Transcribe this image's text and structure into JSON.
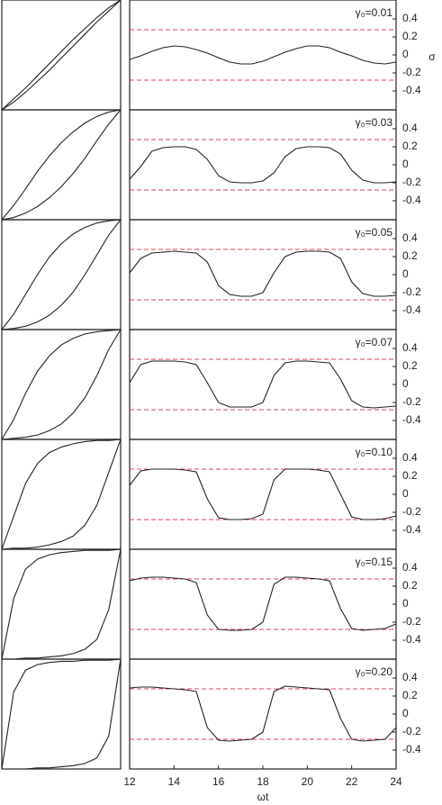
{
  "chart_data": [
    {
      "type": "line",
      "x": [
        0,
        0.1,
        0.2,
        0.3,
        0.4,
        0.5,
        0.6,
        0.7,
        0.8,
        0.9,
        1
      ],
      "xlim": [
        0,
        1
      ],
      "ylim": [
        0,
        1
      ],
      "series": [
        {
          "color": "#222222",
          "values": [
            0,
            0.07,
            0.16,
            0.26,
            0.36,
            0.47,
            0.58,
            0.69,
            0.8,
            0.9,
            1
          ]
        },
        {
          "color": "#222222",
          "values": [
            0,
            0.1,
            0.2,
            0.31,
            0.42,
            0.53,
            0.64,
            0.74,
            0.84,
            0.93,
            1
          ]
        }
      ]
    },
    {
      "type": "line",
      "annotation": "γ₀=0.01",
      "ylabel": "σ",
      "x": [
        12,
        12.5,
        13,
        13.5,
        14,
        14.5,
        15,
        15.5,
        16,
        16.5,
        17,
        17.5,
        18,
        18.5,
        19,
        19.5,
        20,
        20.5,
        21,
        21.5,
        22,
        22.5,
        23,
        23.5,
        24
      ],
      "xlim": [
        12,
        24
      ],
      "ylim": [
        -0.61,
        0.61
      ],
      "yticks": [
        0.4,
        0.2,
        0,
        -0.2,
        -0.4
      ],
      "hlines": [
        0.28,
        -0.28
      ],
      "hline_color": "#e0405a",
      "series": [
        {
          "color": "#222222",
          "values": [
            -0.05,
            -0.01,
            0.04,
            0.08,
            0.1,
            0.09,
            0.06,
            0.02,
            -0.03,
            -0.08,
            -0.1,
            -0.1,
            -0.07,
            -0.02,
            0.03,
            0.07,
            0.1,
            0.1,
            0.08,
            0.03,
            -0.01,
            -0.06,
            -0.09,
            -0.1,
            -0.08
          ]
        }
      ]
    },
    {
      "type": "line",
      "x": [
        0,
        0.1,
        0.2,
        0.3,
        0.4,
        0.5,
        0.6,
        0.7,
        0.8,
        0.9,
        1
      ],
      "xlim": [
        0,
        1
      ],
      "ylim": [
        0,
        1
      ],
      "series": [
        {
          "color": "#222222",
          "values": [
            0,
            0.02,
            0.06,
            0.12,
            0.2,
            0.3,
            0.42,
            0.56,
            0.72,
            0.87,
            1
          ]
        },
        {
          "color": "#222222",
          "values": [
            0,
            0.13,
            0.28,
            0.44,
            0.58,
            0.7,
            0.8,
            0.88,
            0.94,
            0.98,
            1
          ]
        }
      ]
    },
    {
      "type": "line",
      "annotation": "γ₀=0.03",
      "x": [
        12,
        12.5,
        13,
        13.5,
        14,
        14.5,
        15,
        15.5,
        16,
        16.5,
        17,
        17.5,
        18,
        18.5,
        19,
        19.5,
        20,
        20.5,
        21,
        21.5,
        22,
        22.5,
        23,
        23.5,
        24
      ],
      "xlim": [
        12,
        24
      ],
      "ylim": [
        -0.61,
        0.61
      ],
      "yticks": [
        0.4,
        0.2,
        0,
        -0.2,
        -0.4
      ],
      "hlines": [
        0.28,
        -0.28
      ],
      "hline_color": "#e0405a",
      "series": [
        {
          "color": "#222222",
          "values": [
            -0.16,
            -0.02,
            0.15,
            0.19,
            0.2,
            0.2,
            0.17,
            0.06,
            -0.12,
            -0.19,
            -0.2,
            -0.2,
            -0.18,
            -0.09,
            0.09,
            0.18,
            0.2,
            0.2,
            0.19,
            0.12,
            -0.06,
            -0.17,
            -0.2,
            -0.2,
            -0.19
          ]
        }
      ]
    },
    {
      "type": "line",
      "x": [
        0,
        0.1,
        0.2,
        0.3,
        0.4,
        0.5,
        0.6,
        0.7,
        0.8,
        0.9,
        1
      ],
      "xlim": [
        0,
        1
      ],
      "ylim": [
        0,
        1
      ],
      "series": [
        {
          "color": "#222222",
          "values": [
            0,
            0.01,
            0.03,
            0.07,
            0.13,
            0.22,
            0.34,
            0.5,
            0.68,
            0.86,
            1
          ]
        },
        {
          "color": "#222222",
          "values": [
            0,
            0.14,
            0.32,
            0.5,
            0.66,
            0.78,
            0.87,
            0.93,
            0.97,
            0.99,
            1
          ]
        }
      ]
    },
    {
      "type": "line",
      "annotation": "γ₀=0.05",
      "x": [
        12,
        12.5,
        13,
        13.5,
        14,
        14.5,
        15,
        15.5,
        16,
        16.5,
        17,
        17.5,
        18,
        18.5,
        19,
        19.5,
        20,
        20.5,
        21,
        21.5,
        22,
        22.5,
        23,
        23.5,
        24
      ],
      "xlim": [
        12,
        24
      ],
      "ylim": [
        -0.61,
        0.61
      ],
      "yticks": [
        0.4,
        0.2,
        0,
        -0.2,
        -0.4
      ],
      "hlines": [
        0.28,
        -0.28
      ],
      "hline_color": "#e0405a",
      "series": [
        {
          "color": "#222222",
          "values": [
            0.02,
            0.18,
            0.24,
            0.25,
            0.26,
            0.25,
            0.24,
            0.14,
            -0.12,
            -0.22,
            -0.24,
            -0.24,
            -0.2,
            0.02,
            0.2,
            0.25,
            0.26,
            0.26,
            0.25,
            0.18,
            -0.08,
            -0.21,
            -0.24,
            -0.24,
            -0.23
          ]
        }
      ]
    },
    {
      "type": "line",
      "x": [
        0,
        0.1,
        0.2,
        0.3,
        0.4,
        0.5,
        0.6,
        0.7,
        0.8,
        0.9,
        1
      ],
      "xlim": [
        0,
        1
      ],
      "ylim": [
        0,
        1
      ],
      "series": [
        {
          "color": "#222222",
          "values": [
            0,
            0.01,
            0.02,
            0.04,
            0.08,
            0.14,
            0.24,
            0.38,
            0.58,
            0.82,
            1
          ]
        },
        {
          "color": "#222222",
          "values": [
            0,
            0.18,
            0.42,
            0.62,
            0.76,
            0.86,
            0.92,
            0.96,
            0.98,
            0.99,
            1
          ]
        }
      ]
    },
    {
      "type": "line",
      "annotation": "γ₀=0.07",
      "x": [
        12,
        12.5,
        13,
        13.5,
        14,
        14.5,
        15,
        15.5,
        16,
        16.5,
        17,
        17.5,
        18,
        18.5,
        19,
        19.5,
        20,
        20.5,
        21,
        21.5,
        22,
        22.5,
        23,
        23.5,
        24
      ],
      "xlim": [
        12,
        24
      ],
      "ylim": [
        -0.61,
        0.61
      ],
      "yticks": [
        0.4,
        0.2,
        0,
        -0.2,
        -0.4
      ],
      "hlines": [
        0.28,
        -0.28
      ],
      "hline_color": "#e0405a",
      "series": [
        {
          "color": "#222222",
          "values": [
            0.02,
            0.22,
            0.26,
            0.26,
            0.26,
            0.25,
            0.22,
            0.02,
            -0.2,
            -0.25,
            -0.25,
            -0.25,
            -0.2,
            0.1,
            0.24,
            0.26,
            0.26,
            0.25,
            0.24,
            0.06,
            -0.18,
            -0.25,
            -0.26,
            -0.25,
            -0.24
          ]
        }
      ]
    },
    {
      "type": "line",
      "x": [
        0,
        0.1,
        0.2,
        0.3,
        0.4,
        0.5,
        0.6,
        0.7,
        0.8,
        0.9,
        1
      ],
      "xlim": [
        0,
        1
      ],
      "ylim": [
        0,
        1
      ],
      "series": [
        {
          "color": "#222222",
          "values": [
            0,
            0.01,
            0.01,
            0.02,
            0.04,
            0.07,
            0.12,
            0.22,
            0.4,
            0.7,
            1
          ]
        },
        {
          "color": "#222222",
          "values": [
            0,
            0.3,
            0.6,
            0.78,
            0.88,
            0.93,
            0.96,
            0.98,
            0.99,
            0.99,
            1
          ]
        }
      ]
    },
    {
      "type": "line",
      "annotation": "γ₀=0.10",
      "x": [
        12,
        12.5,
        13,
        13.5,
        14,
        14.5,
        15,
        15.5,
        16,
        16.5,
        17,
        17.5,
        18,
        18.5,
        19,
        19.5,
        20,
        20.5,
        21,
        21.5,
        22,
        22.5,
        23,
        23.5,
        24
      ],
      "xlim": [
        12,
        24
      ],
      "ylim": [
        -0.61,
        0.61
      ],
      "yticks": [
        0.4,
        0.2,
        0,
        -0.2,
        -0.4
      ],
      "hlines": [
        0.28,
        -0.28
      ],
      "hline_color": "#e0405a",
      "series": [
        {
          "color": "#222222",
          "values": [
            0.1,
            0.26,
            0.28,
            0.28,
            0.28,
            0.27,
            0.25,
            -0.05,
            -0.26,
            -0.28,
            -0.28,
            -0.27,
            -0.22,
            0.16,
            0.28,
            0.28,
            0.28,
            0.27,
            0.25,
            0,
            -0.25,
            -0.28,
            -0.28,
            -0.27,
            -0.24
          ]
        }
      ]
    },
    {
      "type": "line",
      "x": [
        0,
        0.1,
        0.2,
        0.3,
        0.4,
        0.5,
        0.6,
        0.7,
        0.8,
        0.9,
        1
      ],
      "xlim": [
        0,
        1
      ],
      "ylim": [
        0,
        1
      ],
      "series": [
        {
          "color": "#222222",
          "values": [
            0,
            0,
            0.01,
            0.01,
            0.02,
            0.03,
            0.05,
            0.09,
            0.18,
            0.45,
            1
          ]
        },
        {
          "color": "#222222",
          "values": [
            0,
            0.55,
            0.82,
            0.91,
            0.95,
            0.97,
            0.98,
            0.99,
            0.99,
            0.99,
            1
          ]
        }
      ]
    },
    {
      "type": "line",
      "annotation": "γ₀=0.15",
      "x": [
        12,
        12.5,
        13,
        13.5,
        14,
        14.5,
        15,
        15.5,
        16,
        16.5,
        17,
        17.5,
        18,
        18.5,
        19,
        19.5,
        20,
        20.5,
        21,
        21.5,
        22,
        22.5,
        23,
        23.5,
        24
      ],
      "xlim": [
        12,
        24
      ],
      "ylim": [
        -0.61,
        0.61
      ],
      "yticks": [
        0.4,
        0.2,
        0,
        -0.2,
        -0.4
      ],
      "hlines": [
        0.28,
        -0.28
      ],
      "hline_color": "#e0405a",
      "series": [
        {
          "color": "#222222",
          "values": [
            0.26,
            0.29,
            0.3,
            0.3,
            0.29,
            0.28,
            0.24,
            -0.12,
            -0.28,
            -0.29,
            -0.29,
            -0.28,
            -0.2,
            0.22,
            0.3,
            0.3,
            0.29,
            0.28,
            0.26,
            -0.05,
            -0.27,
            -0.29,
            -0.28,
            -0.27,
            -0.22
          ]
        }
      ]
    },
    {
      "type": "line",
      "x": [
        0,
        0.1,
        0.2,
        0.3,
        0.4,
        0.5,
        0.6,
        0.7,
        0.8,
        0.9,
        1
      ],
      "xlim": [
        0,
        1
      ],
      "ylim": [
        0,
        1
      ],
      "series": [
        {
          "color": "#222222",
          "values": [
            0,
            0,
            0,
            0.01,
            0.01,
            0.02,
            0.03,
            0.05,
            0.1,
            0.3,
            1
          ]
        },
        {
          "color": "#222222",
          "values": [
            0,
            0.7,
            0.9,
            0.95,
            0.97,
            0.98,
            0.98,
            0.99,
            0.99,
            0.99,
            1
          ]
        }
      ]
    },
    {
      "type": "line",
      "annotation": "γ₀=0.20",
      "xlabel": "ωt",
      "x": [
        12,
        12.5,
        13,
        13.5,
        14,
        14.5,
        15,
        15.5,
        16,
        16.5,
        17,
        17.5,
        18,
        18.5,
        19,
        19.5,
        20,
        20.5,
        21,
        21.5,
        22,
        22.5,
        23,
        23.5,
        24
      ],
      "xlim": [
        12,
        24
      ],
      "xticks": [
        12,
        14,
        16,
        18,
        20,
        22,
        24
      ],
      "ylim": [
        -0.61,
        0.61
      ],
      "yticks": [
        0.4,
        0.2,
        0,
        -0.2,
        -0.4
      ],
      "hlines": [
        0.28,
        -0.28
      ],
      "hline_color": "#e0405a",
      "series": [
        {
          "color": "#222222",
          "values": [
            0.29,
            0.3,
            0.3,
            0.29,
            0.28,
            0.27,
            0.25,
            -0.15,
            -0.29,
            -0.3,
            -0.29,
            -0.28,
            -0.2,
            0.25,
            0.31,
            0.3,
            0.29,
            0.28,
            0.27,
            -0.05,
            -0.28,
            -0.3,
            -0.29,
            -0.28,
            -0.15
          ]
        }
      ]
    }
  ]
}
